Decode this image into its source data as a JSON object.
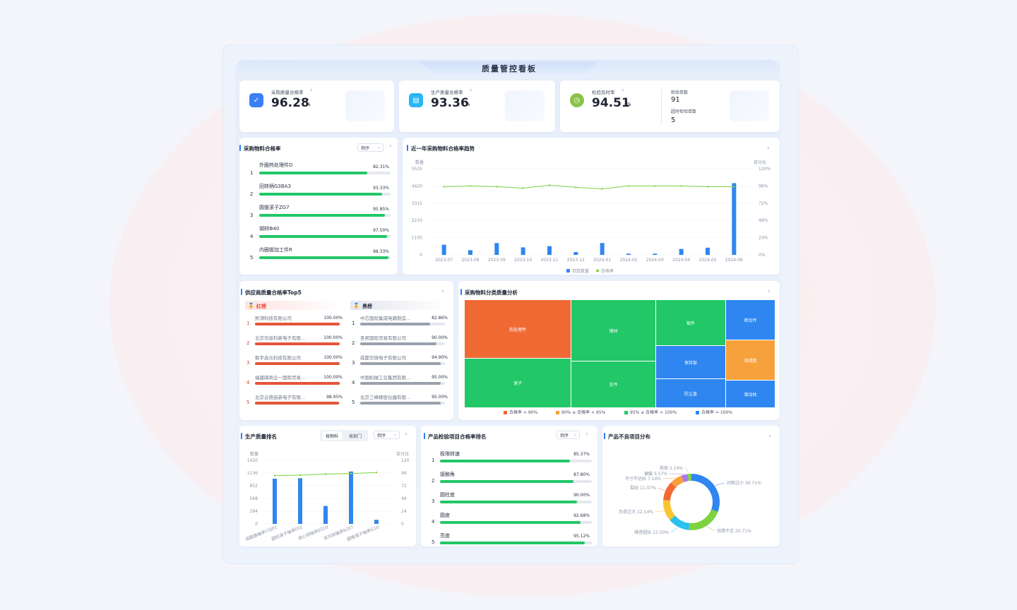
{
  "title": "质量管控看板",
  "kpis": [
    {
      "label": "采购质量合格率",
      "value": "96.28",
      "unit": "%",
      "color": "#3b7ff6"
    },
    {
      "label": "生产质量合格率",
      "value": "93.36",
      "unit": "%",
      "color": "#29b6f6"
    },
    {
      "label": "检验及时率",
      "value": "94.51",
      "unit": "%",
      "color": "#8bc34a"
    }
  ],
  "inspection": {
    "total_label": "检验单数",
    "total_value": "91",
    "overdue_label": "超时检验单数",
    "overdue_value": "5"
  },
  "purchase_rank": {
    "title": "采购物料合格率",
    "sort": "倒序",
    "items": [
      {
        "no": "1",
        "name": "外圈热处理件D",
        "pct": "82.31%",
        "value": 82.31
      },
      {
        "no": "2",
        "name": "回转柄G3BA3",
        "pct": "93.33%",
        "value": 93.33
      },
      {
        "no": "3",
        "name": "圆锥滚子ZG7",
        "pct": "95.85%",
        "value": 95.85
      },
      {
        "no": "4",
        "name": "钢材Φ40",
        "pct": "97.50%",
        "value": 97.5
      },
      {
        "no": "5",
        "name": "内圈锻加工件R",
        "pct": "98.33%",
        "value": 98.33
      }
    ]
  },
  "trend": {
    "title": "近一年采购物料合格率趋势",
    "left_title": "数量",
    "right_title": "百分比",
    "left_ticks": [
      "5525",
      "4420",
      "3315",
      "2210",
      "1105",
      "0"
    ],
    "right_ticks": [
      "120%",
      "96%",
      "72%",
      "48%",
      "24%",
      "0%"
    ],
    "legend_bar": "到货数量",
    "legend_line": "合格率"
  },
  "chart_data": [
    {
      "type": "bar",
      "title": "近一年采购物料合格率趋势",
      "categories": [
        "2023-07",
        "2023-08",
        "2023-09",
        "2023-10",
        "2023-11",
        "2023-12",
        "2024-01",
        "2024-02",
        "2024-03",
        "2024-04",
        "2024-05",
        "2024-06"
      ],
      "series": [
        {
          "name": "到货数量",
          "values": [
            650,
            300,
            760,
            480,
            560,
            180,
            760,
            80,
            80,
            380,
            460,
            4600
          ]
        },
        {
          "name": "合格率",
          "values": [
            95,
            96,
            95,
            93,
            97,
            94,
            92,
            96,
            96,
            96,
            95,
            95
          ]
        }
      ],
      "ylim": [
        0,
        5525
      ],
      "y2lim": [
        0,
        120
      ]
    },
    {
      "type": "bar",
      "title": "生产质量排名",
      "categories": [
        "减震器轴承CGJ01",
        "圆柱滚子轴承F01",
        "调心球轴承6310",
        "深沟球轴承6207",
        "圆锥滚子轴承G10"
      ],
      "series": [
        {
          "name": "数量",
          "values": [
            1010,
            1020,
            400,
            1170,
            90
          ]
        },
        {
          "name": "百分比",
          "values": [
            91,
            92,
            94,
            95,
            97
          ]
        }
      ],
      "ylim": [
        0,
        1420
      ],
      "y2lim": [
        0,
        120
      ]
    },
    {
      "type": "pie",
      "title": "产品不良项目分布",
      "categories": [
        "间隙过小",
        "润滑不足",
        "噪音超标",
        "负荷过大",
        "裂纹",
        "尺寸不达标",
        "偏载",
        "其他"
      ],
      "values": [
        30.71,
        20.71,
        12.5,
        12.14,
        11.07,
        7.14,
        3.57,
        2.14
      ]
    }
  ],
  "supplier": {
    "title": "供应商质量合格率Top5",
    "red_label": "红榜",
    "black_label": "黑榜",
    "red": [
      {
        "no": "1",
        "name": "熙湃科技有限公司",
        "pct": "100.00%",
        "value": 100
      },
      {
        "no": "2",
        "name": "北京讯音科新电子有限...",
        "pct": "100.00%",
        "value": 100
      },
      {
        "no": "3",
        "name": "数字启元科技有限公司",
        "pct": "100.00%",
        "value": 100
      },
      {
        "no": "4",
        "name": "福建闽商企一国际贸易...",
        "pct": "100.00%",
        "value": 100
      },
      {
        "no": "5",
        "name": "北京云德启新电子有限...",
        "pct": "98.95%",
        "value": 98.95
      }
    ],
    "black": [
      {
        "no": "1",
        "name": "中芯国际集成电路制造...",
        "pct": "82.86%",
        "value": 82.86
      },
      {
        "no": "2",
        "name": "圣邦国际贸易有限公司",
        "pct": "90.00%",
        "value": 90.0
      },
      {
        "no": "3",
        "name": "成都华微电子有限公司",
        "pct": "94.90%",
        "value": 94.9
      },
      {
        "no": "4",
        "name": "中国机械工业集团有限...",
        "pct": "95.00%",
        "value": 95.0
      },
      {
        "no": "5",
        "name": "北京三峰精密仪器有限...",
        "pct": "95.00%",
        "value": 95.0
      }
    ]
  },
  "treemap": {
    "title": "采购物料分类质量分析",
    "cells": [
      "热处理件",
      "钢材",
      "锻件",
      "密封件",
      "滚子",
      "车件",
      "保持架",
      "润滑脂",
      "防尘盖",
      "滚动体"
    ],
    "legend": [
      "合格率 < 90%",
      "90% ≤ 合格率 < 95%",
      "95% ≤ 合格率 < 100%",
      "合格率 = 100%"
    ],
    "colors": [
      "#f26a33",
      "#f6a13b",
      "#22c768",
      "#2f86f0"
    ]
  },
  "production": {
    "title": "生产质量排名",
    "tab1": "按物料",
    "tab2": "按部门",
    "sort": "倒序",
    "left_title": "数量",
    "right_title": "百分比",
    "left_ticks": [
      "1420",
      "1136",
      "852",
      "568",
      "284",
      "0"
    ],
    "right_ticks": [
      "120",
      "96",
      "72",
      "48",
      "24",
      "0"
    ]
  },
  "inspect_rank": {
    "title": "产品检验项目合格率排名",
    "sort": "倒序",
    "items": [
      {
        "no": "1",
        "name": "极限转速",
        "pct": "85.37%",
        "value": 85.37
      },
      {
        "no": "2",
        "name": "接触角",
        "pct": "87.80%",
        "value": 87.8
      },
      {
        "no": "3",
        "name": "圆柱度",
        "pct": "90.00%",
        "value": 90.0
      },
      {
        "no": "4",
        "name": "圆度",
        "pct": "92.68%",
        "value": 92.68
      },
      {
        "no": "5",
        "name": "亮度",
        "pct": "95.12%",
        "value": 95.12
      }
    ]
  },
  "defects": {
    "title": "产品不良项目分布",
    "labels": [
      "间隙过小  30.71%",
      "润滑不足  20.71%",
      "噪音超标  12.50%",
      "负荷过大  12.14%",
      "裂纹  11.07%",
      "尺寸不达标  7.14%",
      "偏载  3.57%",
      "其他  2.14%"
    ],
    "colors": [
      "#2f86f0",
      "#7ed23f",
      "#29c1f0",
      "#fbc531",
      "#f26a33",
      "#f6a13b",
      "#a878f0",
      "#7ed23f"
    ]
  }
}
